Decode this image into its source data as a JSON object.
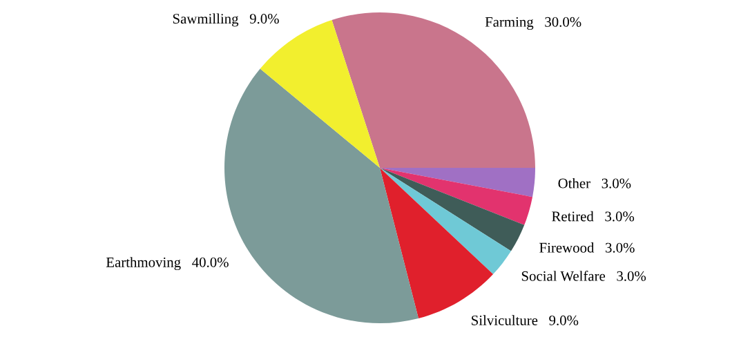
{
  "chart_data": {
    "type": "pie",
    "categories": [
      "Farming",
      "Other",
      "Retired",
      "Firewood",
      "Social Welfare",
      "Silviculture",
      "Earthmoving",
      "Sawmilling"
    ],
    "values": [
      30,
      3,
      3,
      3,
      3,
      9,
      40,
      9
    ],
    "value_labels": [
      "30.0%",
      "3.0%",
      "3.0%",
      "3.0%",
      "3.0%",
      "9.0%",
      "40.0%",
      "9.0%"
    ],
    "colors": [
      "#c9758c",
      "#a070c4",
      "#e2336e",
      "#3f5c58",
      "#6fc9d6",
      "#e0202c",
      "#7c9b99",
      "#f2ef2e"
    ]
  }
}
